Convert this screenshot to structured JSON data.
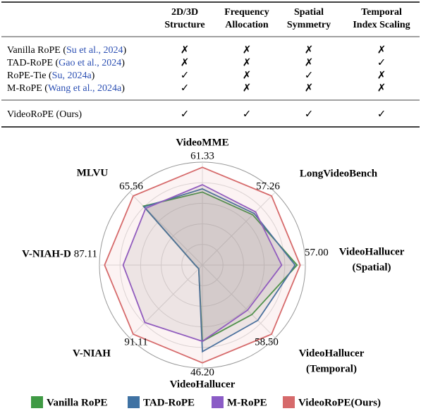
{
  "table": {
    "columns": [
      [
        "2D/3D",
        "Structure"
      ],
      [
        "Frequency",
        "Allocation"
      ],
      [
        "Spatial",
        "Symmetry"
      ],
      [
        "Temporal",
        "Index Scaling"
      ]
    ],
    "rows": [
      {
        "prefix": "Vanilla RoPE (",
        "cite": "Su et al., 2024",
        "suffix": ")",
        "cells": [
          "✗",
          "✗",
          "✗",
          "✗"
        ]
      },
      {
        "prefix": "TAD-RoPE (",
        "cite": "Gao et al., 2024",
        "suffix": ")",
        "cells": [
          "✗",
          "✗",
          "✗",
          "✓"
        ]
      },
      {
        "prefix": "RoPE-Tie (",
        "cite": "Su, 2024a",
        "suffix": ")",
        "cells": [
          "✓",
          "✗",
          "✓",
          "✗"
        ]
      },
      {
        "prefix": "M-RoPE (",
        "cite": "Wang et al., 2024a",
        "suffix": ")",
        "cells": [
          "✓",
          "✗",
          "✗",
          "✗"
        ]
      },
      {
        "prefix": "VideoRoPE (Ours)",
        "cite": "",
        "suffix": "",
        "cells": [
          "✓",
          "✓",
          "✓",
          "✓"
        ]
      }
    ]
  },
  "chart_data": {
    "type": "radar",
    "grid": true,
    "axes": [
      {
        "label": [
          "VideoMME"
        ],
        "color": "#c9a227",
        "max": 64.56
      },
      {
        "label": [
          "LongVideoBench"
        ],
        "color": "#c9a227",
        "max": 60.27
      },
      {
        "label": [
          "VideoHallucer",
          "(Spatial)"
        ],
        "color": "#9ccc3c",
        "max": 60.0
      },
      {
        "label": [
          "VideoHallucer",
          "(Temporal)"
        ],
        "color": "#9ccc3c",
        "max": 61.58
      },
      {
        "label": [
          "VideoHallucer"
        ],
        "color": "#9ccc3c",
        "max": 48.63
      },
      {
        "label": [
          "V-NIAH"
        ],
        "color": "#2aa6dc",
        "max": 95.91
      },
      {
        "label": [
          "V-NIAH-D"
        ],
        "color": "#2aa6dc",
        "max": 91.69
      },
      {
        "label": [
          "MLVU"
        ],
        "color": "#c9a227",
        "max": 69.01
      }
    ],
    "series": [
      {
        "name": "Vanilla RoPE",
        "color": "#3f9a44",
        "values": [
          45.8,
          41.6,
          55.2,
          41.9,
          36.0,
          4.8,
          6.4,
          55.9
        ]
      },
      {
        "name": "TAD-RoPE",
        "color": "#3f72a3",
        "values": [
          47.8,
          42.8,
          54.0,
          46.8,
          40.9,
          4.8,
          6.4,
          55.2
        ]
      },
      {
        "name": "M-RoPE",
        "color": "#8b5cc6",
        "values": [
          50.4,
          44.0,
          46.2,
          38.2,
          36.0,
          75.7,
          70.6,
          53.8
        ]
      },
      {
        "name": "VideoRoPE(Ours)",
        "color": "#d66a6b",
        "values": [
          61.33,
          57.26,
          57.0,
          58.5,
          46.2,
          91.11,
          87.11,
          65.56
        ],
        "value_labels": [
          "61.33",
          "57.26",
          "57.00",
          "58.50",
          "46.20",
          "91.11",
          "87.11",
          "65.56"
        ]
      }
    ]
  }
}
